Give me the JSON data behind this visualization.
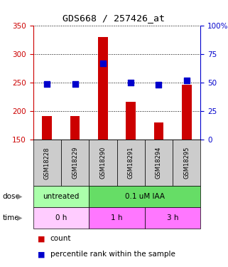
{
  "title": "GDS668 / 257426_at",
  "samples": [
    "GSM18228",
    "GSM18229",
    "GSM18290",
    "GSM18291",
    "GSM18294",
    "GSM18295"
  ],
  "count_values": [
    192,
    192,
    330,
    216,
    180,
    246
  ],
  "percentile_values": [
    49,
    49,
    67,
    50,
    48,
    52
  ],
  "count_base": 150,
  "ylim_left": [
    150,
    350
  ],
  "ylim_right": [
    0,
    100
  ],
  "yticks_left": [
    150,
    200,
    250,
    300,
    350
  ],
  "yticks_right": [
    0,
    25,
    50,
    75,
    100
  ],
  "yticklabels_left": [
    "150",
    "200",
    "250",
    "300",
    "350"
  ],
  "yticklabels_right": [
    "0",
    "25",
    "50",
    "75",
    "100%"
  ],
  "bar_color": "#cc0000",
  "dot_color": "#0000cc",
  "bar_width": 0.35,
  "dot_size": 40,
  "dose_groups": [
    {
      "label": "untreated",
      "start": 0,
      "end": 2,
      "color": "#aaffaa"
    },
    {
      "label": "0.1 uM IAA",
      "start": 2,
      "end": 6,
      "color": "#66dd66"
    }
  ],
  "time_groups": [
    {
      "label": "0 h",
      "start": 0,
      "end": 2,
      "color": "#ffccff"
    },
    {
      "label": "1 h",
      "start": 2,
      "end": 4,
      "color": "#ff77ff"
    },
    {
      "label": "3 h",
      "start": 4,
      "end": 6,
      "color": "#ff77ff"
    }
  ],
  "label_count": "count",
  "label_percentile": "percentile rank within the sample",
  "left_axis_color": "#cc0000",
  "right_axis_color": "#0000cc",
  "bg_color": "#ffffff",
  "sample_box_color": "#cccccc",
  "dose_label": "dose",
  "time_label": "time"
}
